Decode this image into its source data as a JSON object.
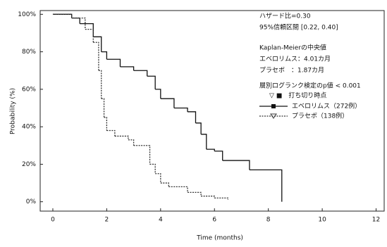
{
  "chart_data": {
    "type": "step",
    "x_label": "Time (months)",
    "y_label": "Probability (%)",
    "xlim": [
      -0.47,
      12.3
    ],
    "ylim": [
      -5,
      102
    ],
    "xticks": [
      0,
      2,
      4,
      6,
      8,
      10,
      12
    ],
    "yticks": [
      {
        "value": 0,
        "label": "0%"
      },
      {
        "value": 20,
        "label": "20%"
      },
      {
        "value": 40,
        "label": "40%"
      },
      {
        "value": 60,
        "label": "60%"
      },
      {
        "value": 80,
        "label": "80%"
      },
      {
        "value": 100,
        "label": "100%"
      }
    ],
    "annotations": [
      "ハザード比=0.30",
      "95%信頼区間 [0.22, 0.40]",
      "Kaplan-Meierの中央値",
      "エベロリムス：4.01カ月",
      "プラセボ　：1.87カ月",
      "層別ログランク検定のp値 < 0.001",
      "▽ ■　打ち切り時点"
    ],
    "series": [
      {
        "name": "エベロリムス（272例）",
        "color": "#111111",
        "dash": false,
        "x": [
          0,
          0.7,
          1,
          1.5,
          1.8,
          2,
          2.5,
          3,
          3.5,
          3.8,
          4,
          4.5,
          5,
          5.3,
          5.5,
          5.7,
          6,
          6.3,
          7.3,
          8.5,
          8.5
        ],
        "values": [
          100,
          98,
          95,
          88,
          80,
          76,
          72,
          70,
          67,
          60,
          55,
          50,
          48,
          42,
          36,
          28,
          27,
          22,
          17,
          16,
          0
        ]
      },
      {
        "name": "プラセボ（138例）",
        "color": "#333333",
        "dash": true,
        "x": [
          0,
          0.7,
          1.2,
          1.5,
          1.7,
          1.8,
          1.9,
          2,
          2.3,
          2.8,
          3,
          3.6,
          3.8,
          4,
          4.3,
          5,
          5.5,
          6,
          6.5
        ],
        "values": [
          100,
          98,
          92,
          85,
          70,
          55,
          45,
          38,
          35,
          33,
          30,
          20,
          15,
          10,
          8,
          5,
          3,
          2,
          1
        ]
      }
    ]
  }
}
